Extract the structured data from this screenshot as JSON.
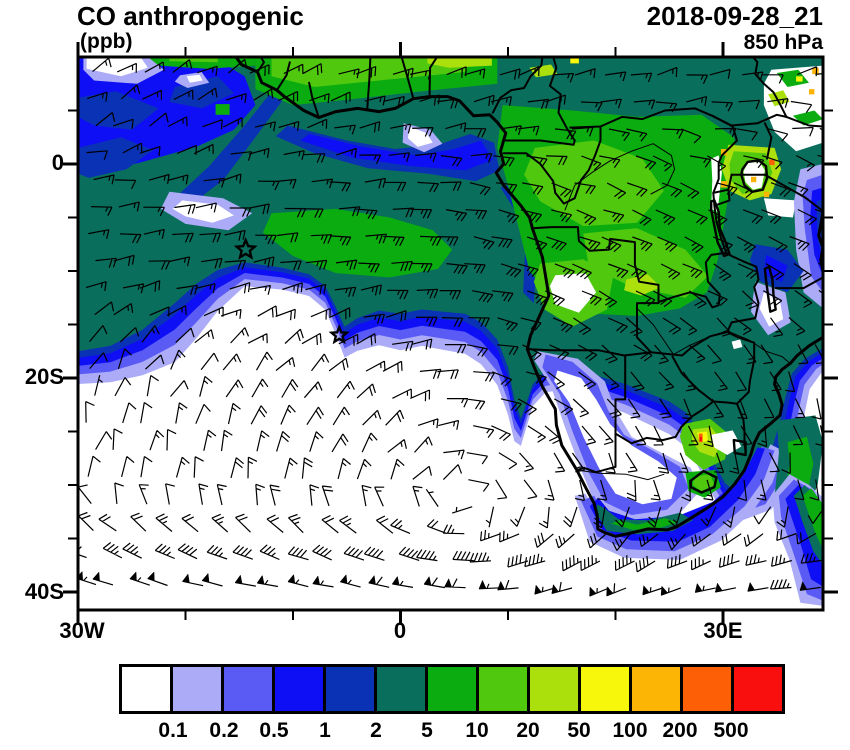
{
  "header": {
    "title": "CO anthropogenic",
    "units_label": "(ppb)",
    "datetime": "2018-09-28_21",
    "level": "850 hPa"
  },
  "chart_data": {
    "type": "heatmap",
    "variable": "CO anthropogenic concentration",
    "units": "ppb",
    "level": "850 hPa",
    "valid_time": "2018-09-28_21",
    "region": {
      "lon_min_deg": -30,
      "lon_max_deg": 39.3,
      "lat_min_deg": -41.7,
      "lat_max_deg": 10
    },
    "x_axis": {
      "tick_labels": [
        "30W",
        "0",
        "30E"
      ],
      "major_interval_deg": 30,
      "minor_interval_deg": 10
    },
    "y_axis": {
      "tick_labels": [
        "0",
        "20S",
        "40S"
      ],
      "major_interval_deg": 20,
      "minor_interval_deg": 5
    },
    "colorbar": {
      "levels_ppb": [
        0.1,
        0.2,
        0.5,
        1,
        2,
        5,
        10,
        20,
        50,
        100,
        200,
        500
      ],
      "labels": [
        "0.1",
        "0.2",
        "0.5",
        "1",
        "2",
        "5",
        "10",
        "20",
        "50",
        "100",
        "200",
        "500"
      ],
      "colors": [
        "#FFFFFF",
        "#ABABF8",
        "#5A5AF5",
        "#0F0FF5",
        "#0A32B4",
        "#0A6E5C",
        "#0AAC10",
        "#50C80E",
        "#ABE00D",
        "#F7F70B",
        "#FCB405",
        "#FC5F05",
        "#FA0F0F"
      ]
    },
    "overlays": [
      "wind barbs",
      "coastlines",
      "country borders",
      "lakes"
    ],
    "markers": [
      {
        "type": "star",
        "lon": -14.4,
        "lat": -8.0
      },
      {
        "type": "star",
        "lon": -5.7,
        "lat": -16.0
      }
    ],
    "field_features": [
      {
        "area": "Congo basin and central Africa",
        "approx_ppb": "5-20"
      },
      {
        "area": "tropical Atlantic plume west of Africa",
        "approx_ppb": "2-10"
      },
      {
        "area": "subtropical South Atlantic and Southern Ocean",
        "approx_ppb": "<0.1"
      },
      {
        "area": "South African Highveld hotspot",
        "approx_ppb": "50-500"
      },
      {
        "area": "Lake Victoria highlands spots",
        "approx_ppb": "100-200"
      },
      {
        "area": "Karoo / Namib interior",
        "approx_ppb": "<0.2"
      }
    ],
    "wind_barbs": {
      "spacing_deg": 2.5,
      "pattern": "SE trades in tropics, anticyclonic gyre near 5E 33S, strong westerlies with 50-kt pennants south of 36S"
    }
  }
}
